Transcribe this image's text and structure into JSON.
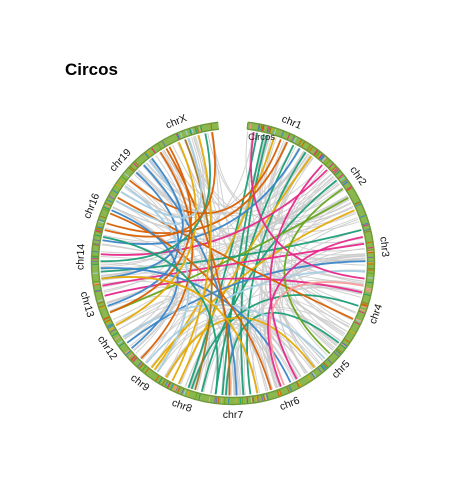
{
  "title": "Circos",
  "colors": {
    "ring": "#8bb84e",
    "ring_dark": "#6e9a39",
    "grey_link": "#cccccc",
    "palette": [
      "#1b9e77",
      "#d95f02",
      "#7570b3",
      "#e7298a",
      "#66a61e",
      "#e6ab02",
      "#a6761d",
      "#3a86c8",
      "#a6cee3",
      "#fb9a99"
    ]
  },
  "circos": {
    "ideogram_label": "Circos",
    "chromosomes": [
      {
        "name": "chr1",
        "start": 0,
        "end": 22
      },
      {
        "name": "chr2",
        "start": 22,
        "end": 43
      },
      {
        "name": "chr3",
        "start": 43,
        "end": 60
      },
      {
        "name": "chr4",
        "start": 60,
        "end": 77
      },
      {
        "name": "chr5",
        "start": 77,
        "end": 93
      },
      {
        "name": "chr6",
        "start": 93,
        "end": 108
      },
      {
        "name": "chr7",
        "start": 108,
        "end": 122
      },
      {
        "name": "chr8",
        "start": 122,
        "end": 134
      },
      {
        "name": "chr9",
        "start": 134,
        "end": 146
      },
      {
        "name": "chr12",
        "start": 146,
        "end": 158
      },
      {
        "name": "chr13",
        "start": 158,
        "end": 170
      },
      {
        "name": "chr14",
        "start": 170,
        "end": 182
      },
      {
        "name": "chr16",
        "start": 182,
        "end": 196
      },
      {
        "name": "chr19",
        "start": 196,
        "end": 209
      },
      {
        "name": "chrX",
        "start": 209,
        "end": 230
      }
    ],
    "links": [
      {
        "from": 3,
        "to": 128,
        "color": "#1b9e77"
      },
      {
        "from": 5,
        "to": 118,
        "color": "#1b9e77"
      },
      {
        "from": 6,
        "to": 112,
        "color": "#1b9e77"
      },
      {
        "from": 8,
        "to": 139,
        "color": "#e6ab02"
      },
      {
        "from": 10,
        "to": 200,
        "color": "#d95f02"
      },
      {
        "from": 12,
        "to": 186,
        "color": "#d95f02"
      },
      {
        "from": 14,
        "to": 120,
        "color": "#1b9e77"
      },
      {
        "from": 16,
        "to": 181,
        "color": "#3a86c8"
      },
      {
        "from": 18,
        "to": 110,
        "color": "#1b9e77"
      },
      {
        "from": 20,
        "to": 131,
        "color": "#e6ab02"
      },
      {
        "from": 26,
        "to": 177,
        "color": "#e7298a"
      },
      {
        "from": 30,
        "to": 124,
        "color": "#1b9e77"
      },
      {
        "from": 36,
        "to": 160,
        "color": "#66a61e"
      },
      {
        "from": 40,
        "to": 140,
        "color": "#e6ab02"
      },
      {
        "from": 46,
        "to": 172,
        "color": "#1b9e77"
      },
      {
        "from": 50,
        "to": 168,
        "color": "#e7298a"
      },
      {
        "from": 55,
        "to": 150,
        "color": "#3a86c8"
      },
      {
        "from": 58,
        "to": 142,
        "color": "#a6cee3"
      },
      {
        "from": 64,
        "to": 165,
        "color": "#e7298a"
      },
      {
        "from": 68,
        "to": 127,
        "color": "#1b9e77"
      },
      {
        "from": 72,
        "to": 194,
        "color": "#d95f02"
      },
      {
        "from": 80,
        "to": 117,
        "color": "#1b9e77"
      },
      {
        "from": 86,
        "to": 152,
        "color": "#a6cee3"
      },
      {
        "from": 90,
        "to": 135,
        "color": "#e6ab02"
      },
      {
        "from": 98,
        "to": 173,
        "color": "#3a86c8"
      },
      {
        "from": 104,
        "to": 189,
        "color": "#d95f02"
      },
      {
        "from": 114,
        "to": 206,
        "color": "#3a86c8"
      },
      {
        "from": 116,
        "to": 214,
        "color": "#d95f02"
      },
      {
        "from": 126,
        "to": 220,
        "color": "#a6761d"
      },
      {
        "from": 133,
        "to": 224,
        "color": "#e6ab02"
      },
      {
        "from": 138,
        "to": 198,
        "color": "#a6cee3"
      },
      {
        "from": 144,
        "to": 212,
        "color": "#d95f02"
      },
      {
        "from": 148,
        "to": 190,
        "color": "#3a86c8"
      },
      {
        "from": 156,
        "to": 218,
        "color": "#e6ab02"
      },
      {
        "from": 162,
        "to": 203,
        "color": "#3a86c8"
      },
      {
        "from": 175,
        "to": 226,
        "color": "#1b9e77"
      },
      {
        "from": 184,
        "to": 228,
        "color": "#d95f02"
      },
      {
        "from": 193,
        "to": 208,
        "color": "#a6cee3"
      },
      {
        "from": 2,
        "to": 60,
        "color": "#e7298a"
      },
      {
        "from": 24,
        "to": 96,
        "color": "#e7298a"
      },
      {
        "from": 33,
        "to": 84,
        "color": "#66a61e"
      },
      {
        "from": 48,
        "to": 101,
        "color": "#e7298a"
      },
      {
        "from": 62,
        "to": 100,
        "color": "#fb9a99"
      },
      {
        "from": 170,
        "to": 209,
        "color": "#3a86c8"
      },
      {
        "from": 160,
        "to": 215,
        "color": "#d95f02"
      },
      {
        "from": 196,
        "to": 221,
        "color": "#a6cee3"
      },
      {
        "from": 120,
        "to": 182,
        "color": "#1b9e77"
      },
      {
        "from": 108,
        "to": 170,
        "color": "#e6ab02"
      }
    ]
  }
}
